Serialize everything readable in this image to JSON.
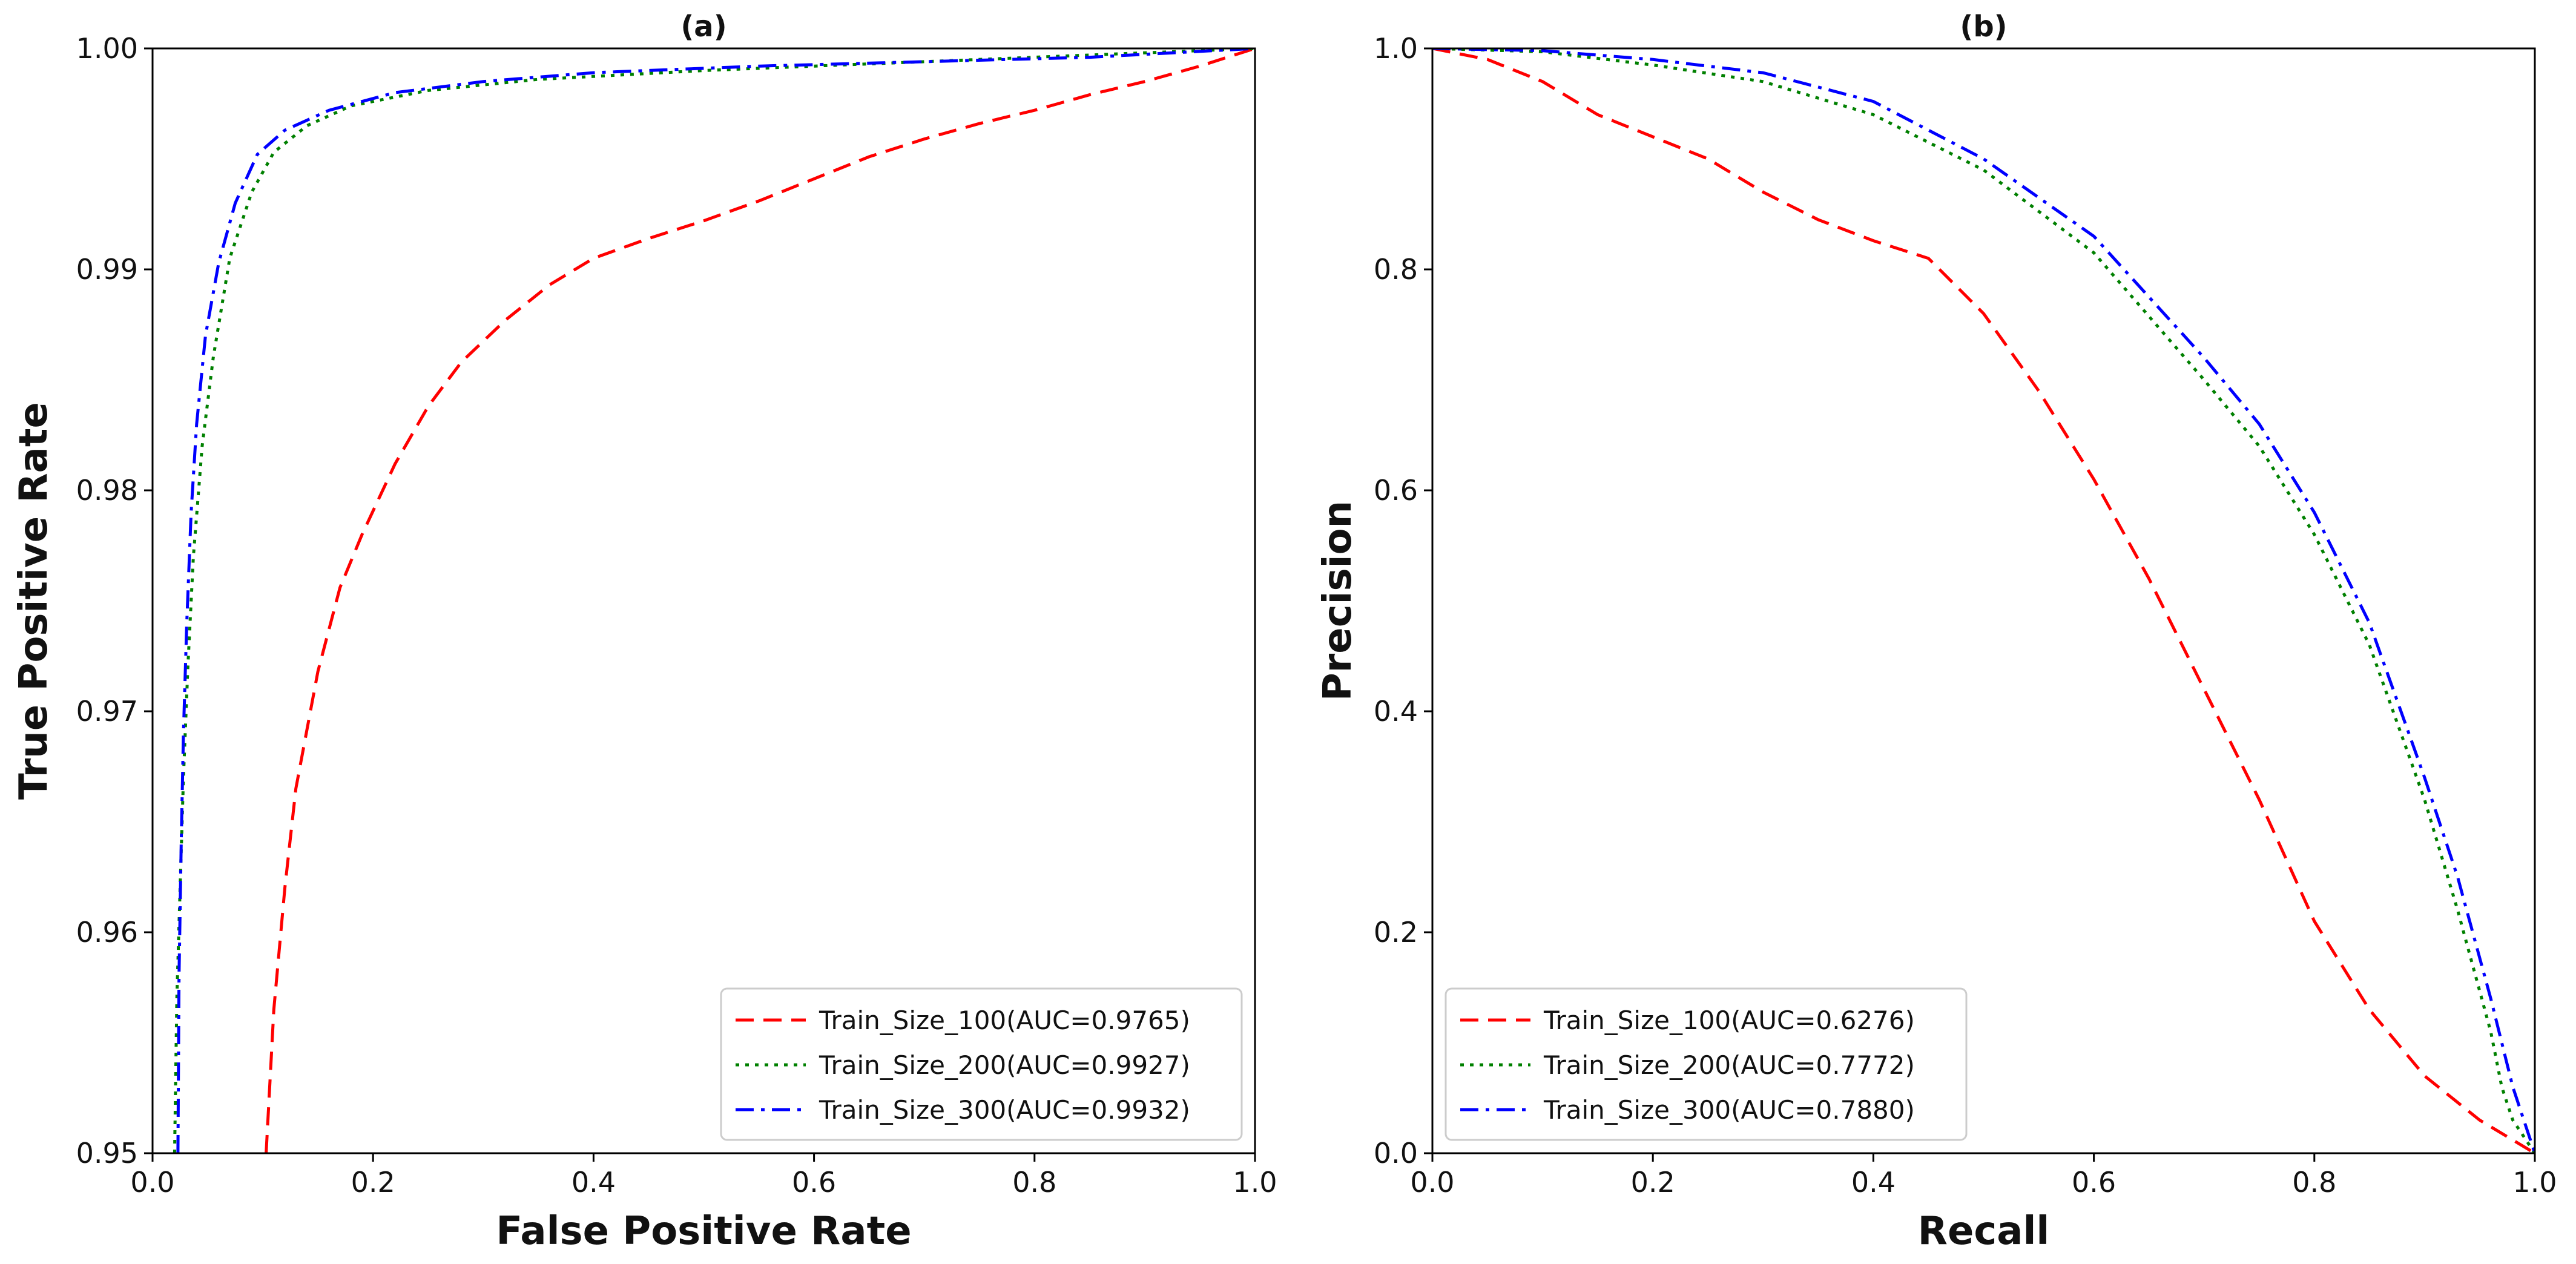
{
  "chart_data": [
    {
      "type": "line",
      "title": "(a)",
      "xlabel": "False Positive Rate",
      "ylabel": "True Positive Rate",
      "xlim": [
        0.0,
        1.0
      ],
      "ylim": [
        0.95,
        1.0
      ],
      "xticks": [
        "0.0",
        "0.2",
        "0.4",
        "0.6",
        "0.8",
        "1.0"
      ],
      "yticks": [
        "0.95",
        "0.96",
        "0.97",
        "0.98",
        "0.99",
        "1.00"
      ],
      "grid": false,
      "legend_position": "lower-right",
      "series": [
        {
          "name": "Train_Size_100(AUC=0.9765)",
          "color": "#ff0000",
          "dash": "dashed",
          "x": [
            0.103,
            0.11,
            0.12,
            0.13,
            0.15,
            0.17,
            0.19,
            0.22,
            0.25,
            0.28,
            0.32,
            0.36,
            0.4,
            0.45,
            0.5,
            0.55,
            0.6,
            0.65,
            0.7,
            0.75,
            0.8,
            0.85,
            0.9,
            0.95,
            1.0
          ],
          "y": [
            0.95,
            0.9565,
            0.962,
            0.9665,
            0.9718,
            0.9756,
            0.978,
            0.9812,
            0.9838,
            0.9858,
            0.9877,
            0.9893,
            0.9905,
            0.9914,
            0.9922,
            0.9931,
            0.9941,
            0.9951,
            0.9959,
            0.9966,
            0.9972,
            0.9979,
            0.9985,
            0.9992,
            1.0
          ]
        },
        {
          "name": "Train_Size_200(AUC=0.9927)",
          "color": "#008000",
          "dash": "dotted",
          "x": [
            0.02,
            0.022,
            0.025,
            0.028,
            0.032,
            0.037,
            0.045,
            0.055,
            0.07,
            0.09,
            0.11,
            0.14,
            0.18,
            0.25,
            0.35,
            0.5,
            0.7,
            0.85,
            1.0
          ],
          "y": [
            0.95,
            0.957,
            0.962,
            0.967,
            0.972,
            0.977,
            0.982,
            0.986,
            0.9905,
            0.9935,
            0.9953,
            0.9965,
            0.9974,
            0.9981,
            0.9986,
            0.999,
            0.9994,
            0.9997,
            1.0
          ]
        },
        {
          "name": "Train_Size_300(AUC=0.9932)",
          "color": "#0000ff",
          "dash": "dashdot",
          "x": [
            0.023,
            0.024,
            0.026,
            0.028,
            0.031,
            0.035,
            0.04,
            0.048,
            0.06,
            0.075,
            0.095,
            0.12,
            0.16,
            0.22,
            0.3,
            0.4,
            0.55,
            0.7,
            0.85,
            1.0
          ],
          "y": [
            0.95,
            0.958,
            0.964,
            0.969,
            0.974,
            0.979,
            0.983,
            0.987,
            0.9903,
            0.993,
            0.9952,
            0.9963,
            0.9972,
            0.998,
            0.9985,
            0.9989,
            0.9992,
            0.9994,
            0.9996,
            1.0
          ]
        }
      ]
    },
    {
      "type": "line",
      "title": "(b)",
      "xlabel": "Recall",
      "ylabel": "Precision",
      "xlim": [
        0.0,
        1.0
      ],
      "ylim": [
        0.0,
        1.0
      ],
      "xticks": [
        "0.0",
        "0.2",
        "0.4",
        "0.6",
        "0.8",
        "1.0"
      ],
      "yticks": [
        "0.0",
        "0.2",
        "0.4",
        "0.6",
        "0.8",
        "1.0"
      ],
      "grid": false,
      "legend_position": "lower-left",
      "series": [
        {
          "name": "Train_Size_100(AUC=0.6276)",
          "color": "#ff0000",
          "dash": "dashed",
          "x": [
            0.0,
            0.05,
            0.1,
            0.15,
            0.2,
            0.25,
            0.3,
            0.35,
            0.4,
            0.45,
            0.5,
            0.55,
            0.6,
            0.65,
            0.7,
            0.75,
            0.8,
            0.85,
            0.9,
            0.95,
            1.0
          ],
          "y": [
            1.0,
            0.99,
            0.97,
            0.94,
            0.92,
            0.9,
            0.87,
            0.845,
            0.826,
            0.81,
            0.76,
            0.69,
            0.61,
            0.52,
            0.42,
            0.32,
            0.21,
            0.13,
            0.07,
            0.03,
            0.0
          ]
        },
        {
          "name": "Train_Size_200(AUC=0.7772)",
          "color": "#008000",
          "dash": "dotted",
          "x": [
            0.0,
            0.1,
            0.2,
            0.3,
            0.4,
            0.5,
            0.6,
            0.7,
            0.75,
            0.8,
            0.85,
            0.9,
            0.93,
            0.96,
            0.97,
            0.98,
            1.0
          ],
          "y": [
            1.0,
            0.997,
            0.985,
            0.97,
            0.94,
            0.89,
            0.815,
            0.7,
            0.64,
            0.56,
            0.46,
            0.32,
            0.22,
            0.11,
            0.06,
            0.03,
            0.0
          ]
        },
        {
          "name": "Train_Size_300(AUC=0.7880)",
          "color": "#0000ff",
          "dash": "dashdot",
          "x": [
            0.0,
            0.1,
            0.2,
            0.3,
            0.4,
            0.5,
            0.6,
            0.7,
            0.75,
            0.8,
            0.85,
            0.9,
            0.93,
            0.96,
            0.98,
            0.99,
            1.0
          ],
          "y": [
            1.0,
            0.998,
            0.99,
            0.978,
            0.952,
            0.9,
            0.83,
            0.72,
            0.66,
            0.58,
            0.48,
            0.34,
            0.25,
            0.14,
            0.06,
            0.03,
            0.0
          ]
        }
      ]
    }
  ]
}
